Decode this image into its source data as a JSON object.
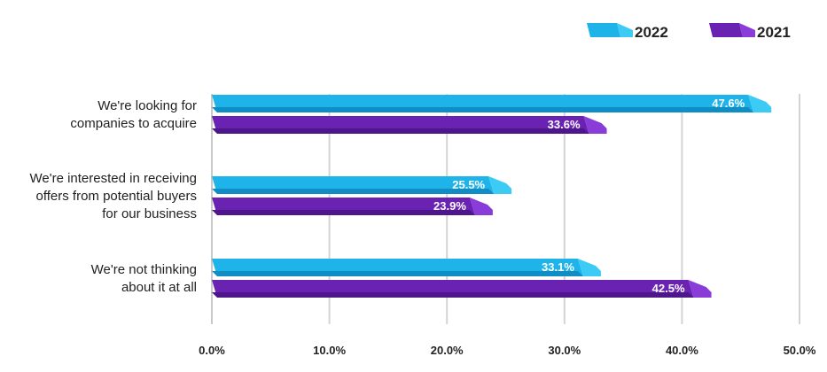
{
  "chart_data": {
    "type": "bar",
    "orientation": "horizontal",
    "categories": [
      [
        "We're looking for",
        "companies to acquire"
      ],
      [
        "We're interested in receiving",
        "offers from potential buyers",
        "for our business"
      ],
      [
        "We're not thinking",
        "about it at all"
      ]
    ],
    "series": [
      {
        "name": "2022",
        "values": [
          47.6,
          25.5,
          33.1
        ],
        "labels": [
          "47.6%",
          "25.5%",
          "33.1%"
        ],
        "color": "#1EB4EA",
        "shade": "#0F8DC4",
        "tip": "#3CCBF4"
      },
      {
        "name": "2021",
        "values": [
          33.6,
          23.9,
          42.5
        ],
        "labels": [
          "33.6%",
          "23.9%",
          "42.5%"
        ],
        "color": "#6A22B2",
        "shade": "#4D168A",
        "tip": "#8A3CD8"
      }
    ],
    "xlim": [
      0,
      50
    ],
    "ticks": [
      0,
      10,
      20,
      30,
      40,
      50
    ],
    "tick_labels": [
      "0.0%",
      "10.0%",
      "20.0%",
      "30.0%",
      "40.0%",
      "50.0%"
    ],
    "grid": true,
    "legend": "top-right",
    "title": "",
    "xlabel": "",
    "ylabel": ""
  }
}
